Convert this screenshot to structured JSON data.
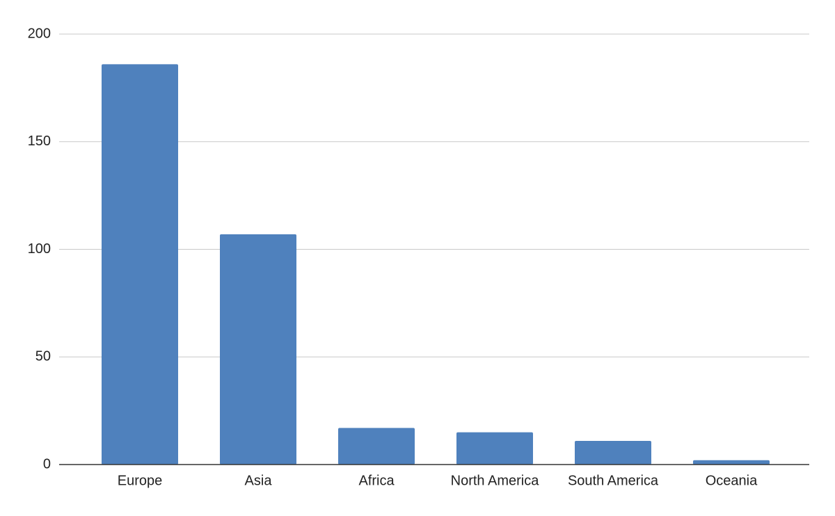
{
  "chart_data": {
    "type": "bar",
    "categories": [
      "Europe",
      "Asia",
      "Africa",
      "North America",
      "South America",
      "Oceania"
    ],
    "values": [
      186,
      107,
      17,
      15,
      11,
      2
    ],
    "color": "#4f81bd",
    "ylim": [
      0,
      200
    ],
    "yticks": [
      0,
      50,
      100,
      150,
      200
    ],
    "grid": true
  }
}
